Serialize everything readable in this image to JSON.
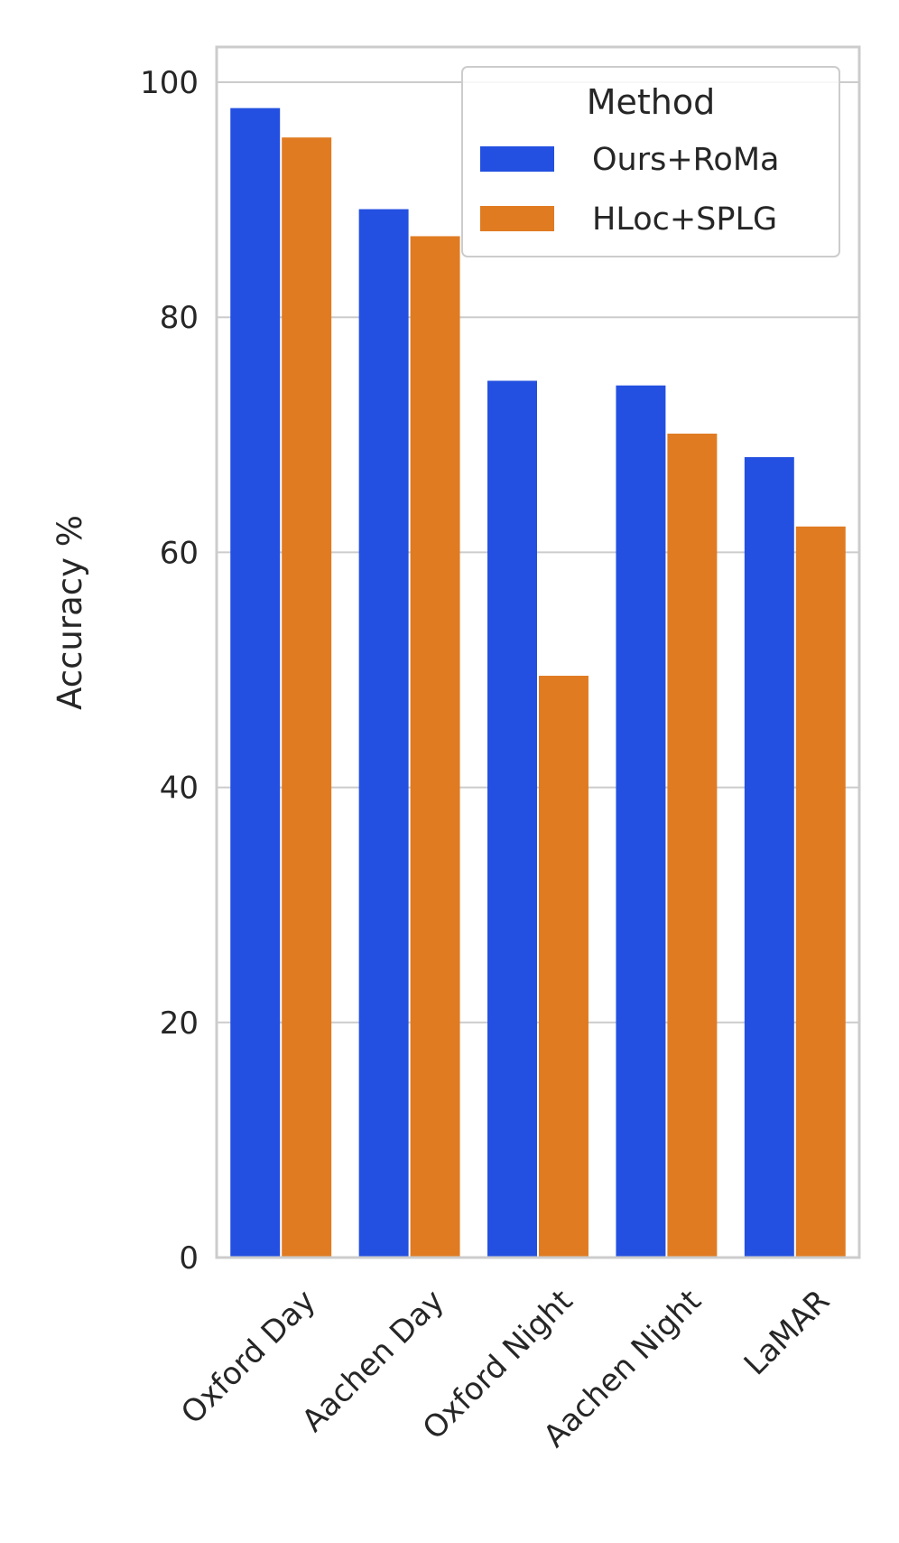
{
  "chart_data": {
    "type": "bar",
    "categories": [
      "Oxford Day",
      "Aachen Day",
      "Oxford Night",
      "Aachen Night",
      "LaMAR"
    ],
    "series": [
      {
        "name": "Ours+RoMa",
        "color": "#2350e0",
        "values": [
          97.8,
          89.2,
          74.6,
          74.2,
          68.1
        ]
      },
      {
        "name": "HLoc+SPLG",
        "color": "#e07b22",
        "values": [
          95.3,
          86.9,
          49.5,
          70.1,
          62.2
        ]
      }
    ],
    "title": "",
    "xlabel": "",
    "ylabel": "Accuracy %",
    "ylim": [
      0,
      103
    ],
    "yticks": [
      0,
      20,
      40,
      60,
      80,
      100
    ],
    "grid": true,
    "legend": {
      "title": "Method",
      "position": "top-right"
    }
  }
}
